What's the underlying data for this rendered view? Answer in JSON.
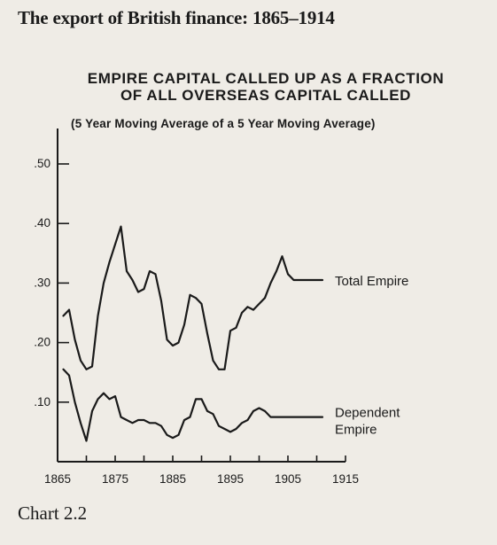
{
  "page": {
    "header": "The export of British finance: 1865–1914",
    "caption": "Chart 2.2"
  },
  "chart_data": {
    "type": "line",
    "title_lines": [
      "EMPIRE CAPITAL CALLED UP AS A FRACTION",
      "OF ALL OVERSEAS CAPITAL CALLED"
    ],
    "subtitle": "(5 Year Moving Average of a 5 Year Moving Average)",
    "xlabel": "",
    "ylabel": "",
    "xlim": [
      1865,
      1915
    ],
    "ylim": [
      0,
      0.5
    ],
    "x_ticks": [
      1865,
      1870,
      1875,
      1880,
      1885,
      1890,
      1895,
      1900,
      1905,
      1910,
      1915
    ],
    "x_tick_labels": [
      {
        "x": 1865,
        "label": "1865"
      },
      {
        "x": 1875,
        "label": "1875"
      },
      {
        "x": 1885,
        "label": "1885"
      },
      {
        "x": 1895,
        "label": "1895"
      },
      {
        "x": 1905,
        "label": "1905"
      },
      {
        "x": 1915,
        "label": "1915"
      }
    ],
    "y_ticks": [
      {
        "value": 0.1,
        "label": ".10"
      },
      {
        "value": 0.2,
        "label": ".20"
      },
      {
        "value": 0.3,
        "label": ".30"
      },
      {
        "value": 0.4,
        "label": ".40"
      },
      {
        "value": 0.5,
        "label": ".50"
      }
    ],
    "grid": false,
    "legend": "none",
    "series": [
      {
        "name": "Total Empire",
        "label_lines": [
          "Total Empire"
        ],
        "x": [
          1866,
          1867,
          1868,
          1869,
          1870,
          1871,
          1872,
          1873,
          1874,
          1875,
          1876,
          1877,
          1878,
          1879,
          1880,
          1881,
          1882,
          1883,
          1884,
          1885,
          1886,
          1887,
          1888,
          1889,
          1890,
          1891,
          1892,
          1893,
          1894,
          1895,
          1896,
          1897,
          1898,
          1899,
          1900,
          1901,
          1902,
          1903,
          1904,
          1905,
          1906,
          1907,
          1908,
          1909,
          1910,
          1911
        ],
        "values": [
          0.245,
          0.255,
          0.205,
          0.17,
          0.155,
          0.16,
          0.245,
          0.3,
          0.335,
          0.365,
          0.395,
          0.32,
          0.305,
          0.285,
          0.29,
          0.32,
          0.315,
          0.27,
          0.205,
          0.195,
          0.2,
          0.23,
          0.28,
          0.275,
          0.265,
          0.215,
          0.17,
          0.155,
          0.155,
          0.22,
          0.225,
          0.25,
          0.26,
          0.255,
          0.265,
          0.275,
          0.3,
          0.32,
          0.345,
          0.315,
          0.305,
          0.305,
          0.305,
          0.305,
          0.305,
          0.305
        ]
      },
      {
        "name": "Dependent Empire",
        "label_lines": [
          "Dependent",
          "Empire"
        ],
        "x": [
          1866,
          1867,
          1868,
          1869,
          1870,
          1871,
          1872,
          1873,
          1874,
          1875,
          1876,
          1877,
          1878,
          1879,
          1880,
          1881,
          1882,
          1883,
          1884,
          1885,
          1886,
          1887,
          1888,
          1889,
          1890,
          1891,
          1892,
          1893,
          1894,
          1895,
          1896,
          1897,
          1898,
          1899,
          1900,
          1901,
          1902,
          1903,
          1904,
          1905,
          1906,
          1907,
          1908,
          1909,
          1910,
          1911
        ],
        "values": [
          0.155,
          0.145,
          0.1,
          0.065,
          0.035,
          0.085,
          0.105,
          0.115,
          0.105,
          0.11,
          0.075,
          0.07,
          0.065,
          0.07,
          0.07,
          0.065,
          0.065,
          0.06,
          0.045,
          0.04,
          0.045,
          0.07,
          0.075,
          0.105,
          0.105,
          0.085,
          0.08,
          0.06,
          0.055,
          0.05,
          0.055,
          0.065,
          0.07,
          0.085,
          0.09,
          0.085,
          0.075,
          0.075,
          0.075,
          0.075,
          0.075,
          0.075,
          0.075,
          0.075,
          0.075,
          0.075
        ]
      }
    ]
  }
}
